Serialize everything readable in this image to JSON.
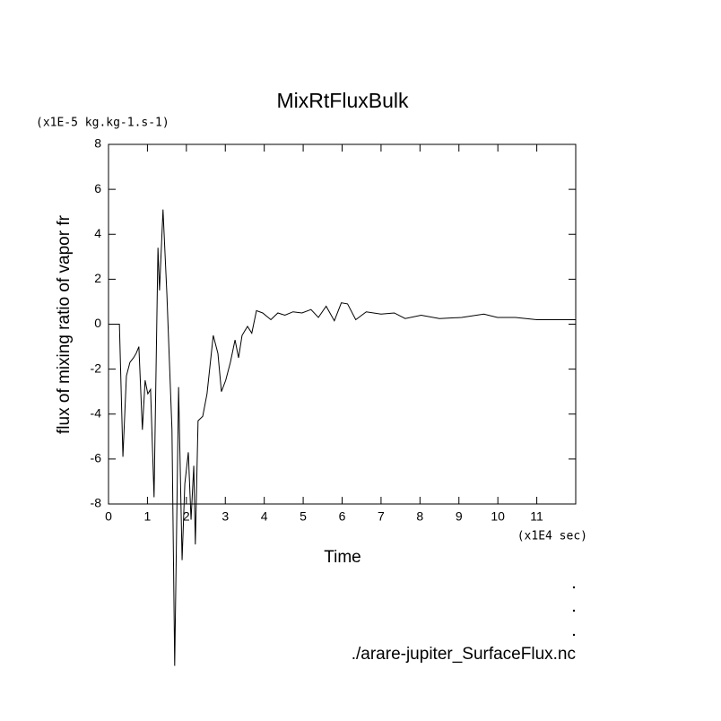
{
  "chart_data": {
    "type": "line",
    "title": "MixRtFluxBulk",
    "y_unit": "(x1E-5 kg.kg-1.s-1)",
    "y_label": "flux of mixing ratio of vapor fr",
    "x_label": "Time",
    "x_unit": "(x1E4 sec)",
    "footnote": "./arare-jupiter_SurfaceFlux.nc",
    "xlim": [
      0,
      12
    ],
    "ylim": [
      -8,
      8
    ],
    "xticks": [
      0,
      1,
      2,
      3,
      4,
      5,
      6,
      7,
      8,
      9,
      10,
      11
    ],
    "yticks": [
      -8,
      -6,
      -4,
      -2,
      0,
      2,
      4,
      6,
      8
    ],
    "series": [
      {
        "color": "#000000",
        "x": [
          0,
          0.28,
          0.37,
          0.46,
          0.55,
          0.64,
          0.71,
          0.78,
          0.87,
          0.94,
          1.01,
          1.08,
          1.17,
          1.27,
          1.31,
          1.4,
          1.5,
          1.63,
          1.7,
          1.8,
          1.89,
          1.96,
          2.05,
          2.12,
          2.19,
          2.23,
          2.3,
          2.42,
          2.53,
          2.69,
          2.81,
          2.9,
          3.01,
          3.13,
          3.25,
          3.34,
          3.43,
          3.57,
          3.68,
          3.8,
          3.96,
          4.17,
          4.35,
          4.53,
          4.74,
          4.97,
          5.2,
          5.39,
          5.59,
          5.8,
          5.98,
          6.14,
          6.35,
          6.62,
          7.0,
          7.34,
          7.62,
          8.03,
          8.5,
          9.07,
          9.64,
          9.99,
          10.45,
          11.0,
          12
        ],
        "values": [
          0,
          0,
          -5.9,
          -2.3,
          -1.7,
          -1.5,
          -1.3,
          -1.0,
          -4.7,
          -2.5,
          -3.1,
          -2.9,
          -7.7,
          3.4,
          1.5,
          5.1,
          1.3,
          -4.7,
          -15.2,
          -2.8,
          -10.5,
          -7.1,
          -5.7,
          -8.7,
          -6.3,
          -9.8,
          -4.3,
          -4.1,
          -3.1,
          -0.5,
          -1.3,
          -3.0,
          -2.5,
          -1.7,
          -0.7,
          -1.5,
          -0.5,
          -0.1,
          -0.4,
          0.6,
          0.5,
          0.2,
          0.5,
          0.4,
          0.55,
          0.5,
          0.65,
          0.3,
          0.8,
          0.15,
          0.95,
          0.9,
          0.2,
          0.55,
          0.45,
          0.5,
          0.25,
          0.4,
          0.25,
          0.3,
          0.45,
          0.3,
          0.3,
          0.2,
          0.2
        ]
      }
    ]
  }
}
